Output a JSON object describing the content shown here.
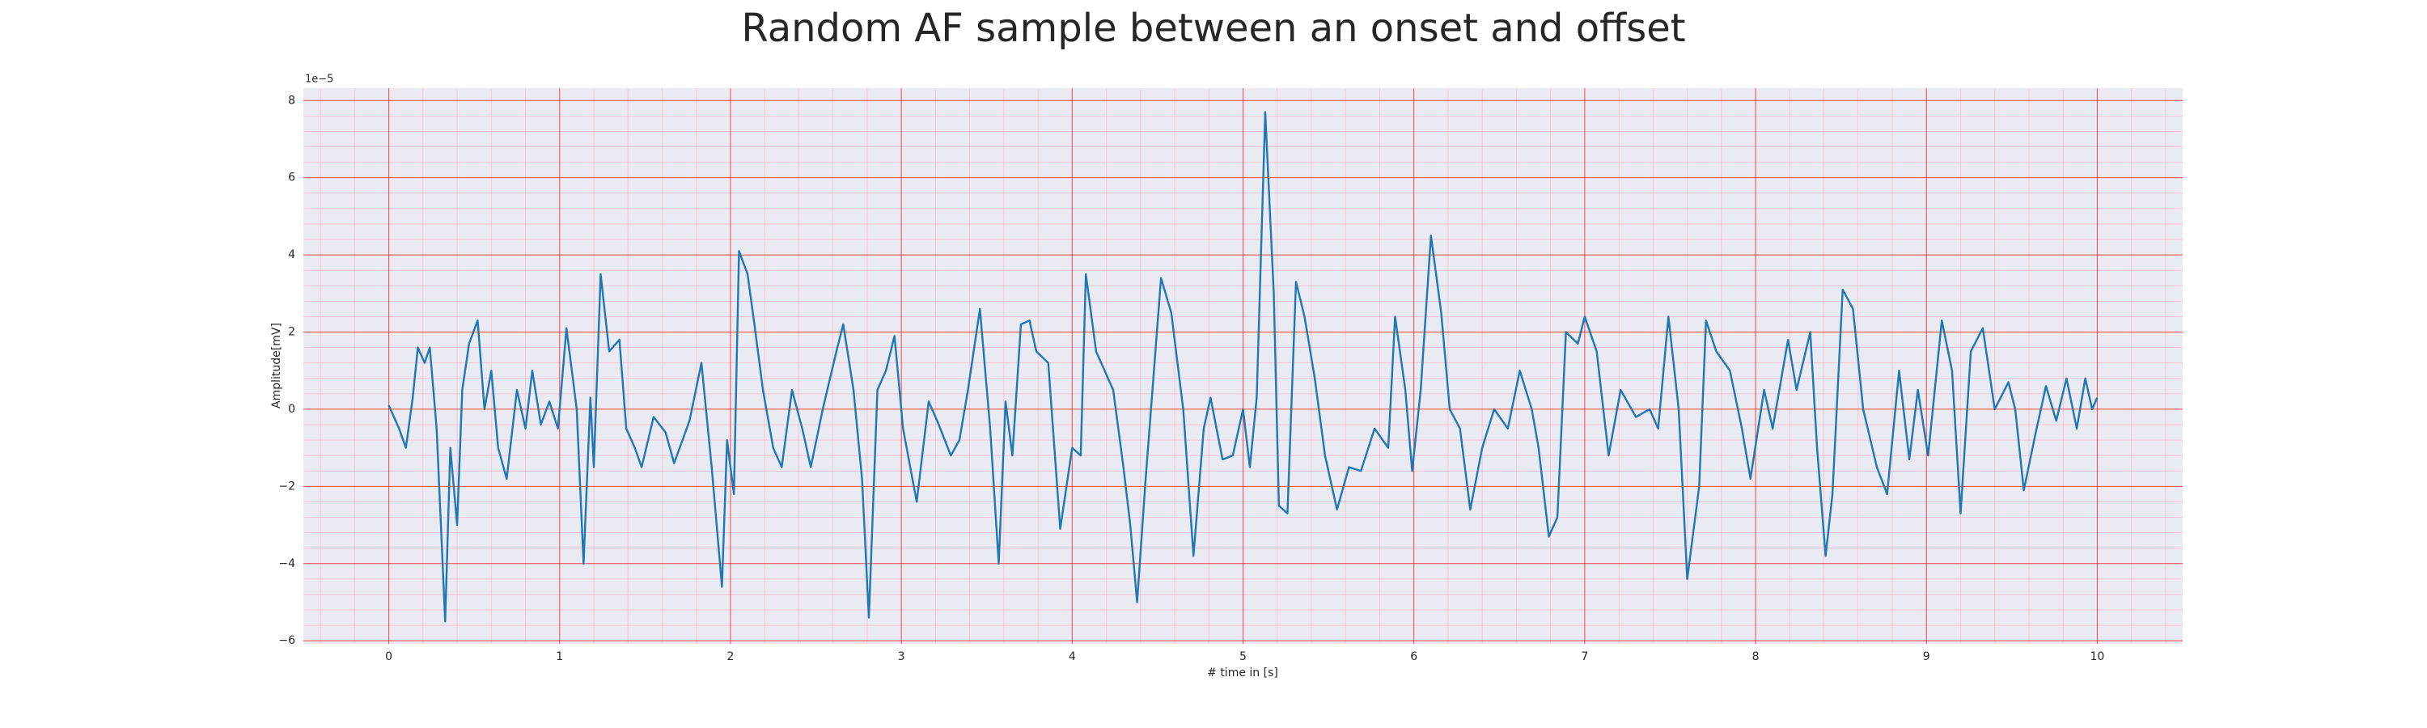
{
  "chart_data": {
    "type": "line",
    "title": "Random AF sample between an onset and offset",
    "xlabel": "# time in [s]",
    "ylabel": "Amplitude[mV]",
    "y_offset_label": "1e−5",
    "xlim": [
      -0.5,
      10.5
    ],
    "ylim": [
      -6.08,
      8.32
    ],
    "xticks": [
      0,
      1,
      2,
      3,
      4,
      5,
      6,
      7,
      8,
      9,
      10
    ],
    "yticks": [
      {
        "value": -6,
        "label": "−6"
      },
      {
        "value": -4,
        "label": "−4"
      },
      {
        "value": -2,
        "label": "−2"
      },
      0,
      2,
      4,
      6,
      8
    ],
    "xminorticks": [
      -0.4,
      -0.2,
      0.2,
      0.4,
      0.6,
      0.8,
      1.2,
      1.4,
      1.6,
      1.8,
      2.2,
      2.4,
      2.6,
      2.8,
      3.2,
      3.4,
      3.6,
      3.8,
      4.2,
      4.4,
      4.6,
      4.8,
      5.2,
      5.4,
      5.6,
      5.8,
      6.2,
      6.4,
      6.6,
      6.8,
      7.2,
      7.4,
      7.6,
      7.8,
      8.2,
      8.4,
      8.6,
      8.8,
      9.2,
      9.4,
      9.6,
      9.8,
      10.2,
      10.4
    ],
    "yminorticks": [
      -5.6,
      -5.2,
      -4.8,
      -4.4,
      -3.6,
      -3.2,
      -2.8,
      -2.4,
      -1.6,
      -1.2,
      -0.8,
      -0.4,
      0.4,
      0.8,
      1.2,
      1.6,
      2.4,
      2.8,
      3.2,
      3.6,
      4.4,
      4.8,
      5.2,
      5.6,
      6.4,
      6.8,
      7.2,
      7.6
    ],
    "grid": true,
    "minor_grid": true,
    "grid_color": "#ff0000",
    "minor_grid_color": "#ffb0c0",
    "background": "#eaeaf2",
    "x": [
      0,
      0.06,
      0.1,
      0.14,
      0.17,
      0.21,
      0.24,
      0.28,
      0.33,
      0.36,
      0.4,
      0.43,
      0.47,
      0.52,
      0.56,
      0.6,
      0.64,
      0.69,
      0.75,
      0.8,
      0.84,
      0.89,
      0.94,
      0.99,
      1.04,
      1.1,
      1.14,
      1.18,
      1.2,
      1.24,
      1.29,
      1.35,
      1.39,
      1.44,
      1.48,
      1.55,
      1.62,
      1.67,
      1.76,
      1.83,
      1.89,
      1.95,
      1.98,
      2.02,
      2.05,
      2.1,
      2.14,
      2.19,
      2.25,
      2.3,
      2.36,
      2.42,
      2.47,
      2.54,
      2.62,
      2.66,
      2.72,
      2.77,
      2.81,
      2.86,
      2.91,
      2.96,
      3.01,
      3.09,
      3.16,
      3.21,
      3.29,
      3.34,
      3.39,
      3.46,
      3.52,
      3.57,
      3.61,
      3.65,
      3.7,
      3.75,
      3.79,
      3.86,
      3.93,
      4,
      4.05,
      4.08,
      4.14,
      4.19,
      4.24,
      4.3,
      4.34,
      4.38,
      4.43,
      4.47,
      4.52,
      4.58,
      4.65,
      4.71,
      4.77,
      4.81,
      4.88,
      4.94,
      5,
      5.04,
      5.08,
      5.13,
      5.18,
      5.21,
      5.26,
      5.31,
      5.36,
      5.42,
      5.48,
      5.55,
      5.62,
      5.69,
      5.77,
      5.85,
      5.89,
      5.95,
      5.99,
      6.04,
      6.1,
      6.16,
      6.21,
      6.27,
      6.33,
      6.4,
      6.47,
      6.55,
      6.62,
      6.69,
      6.73,
      6.79,
      6.84,
      6.89,
      6.96,
      7,
      7.07,
      7.14,
      7.21,
      7.3,
      7.38,
      7.43,
      7.49,
      7.55,
      7.6,
      7.67,
      7.71,
      7.77,
      7.85,
      7.92,
      7.97,
      8.05,
      8.1,
      8.19,
      8.24,
      8.32,
      8.36,
      8.41,
      8.45,
      8.51,
      8.57,
      8.63,
      8.71,
      8.77,
      8.84,
      8.9,
      8.95,
      9.01,
      9.09,
      9.15,
      9.2,
      9.26,
      9.33,
      9.4,
      9.48,
      9.52,
      9.57,
      9.64,
      9.7,
      9.76,
      9.82,
      9.88,
      9.93,
      9.97,
      10
    ],
    "series": [
      {
        "color": "#1f77b4",
        "values": [
          0.1,
          -0.5,
          -1,
          0.3,
          1.6,
          1.2,
          1.6,
          -0.5,
          -5.5,
          -1,
          -3,
          0.5,
          1.7,
          2.3,
          0,
          1,
          -1,
          -1.8,
          0.5,
          -0.5,
          1,
          -0.4,
          0.2,
          -0.5,
          2.1,
          0,
          -4,
          0.3,
          -1.5,
          3.5,
          1.5,
          1.8,
          -0.5,
          -1,
          -1.5,
          -0.2,
          -0.6,
          -1.4,
          -0.3,
          1.2,
          -1.5,
          -4.6,
          -0.8,
          -2.2,
          4.1,
          3.5,
          2.2,
          0.5,
          -1,
          -1.5,
          0.5,
          -0.5,
          -1.5,
          0,
          1.5,
          2.2,
          0.5,
          -1.8,
          -5.4,
          0.5,
          1,
          1.9,
          -0.5,
          -2.4,
          0.2,
          -0.3,
          -1.2,
          -0.8,
          0.5,
          2.6,
          -0.5,
          -4,
          0.2,
          -1.2,
          2.2,
          2.3,
          1.5,
          1.2,
          -3.1,
          -1,
          -1.2,
          3.5,
          1.5,
          1,
          0.5,
          -1.5,
          -3,
          -5,
          -1.8,
          0.5,
          3.4,
          2.5,
          0,
          -3.8,
          -0.5,
          0.3,
          -1.3,
          -1.2,
          0,
          -1.5,
          0.3,
          7.7,
          3,
          -2.5,
          -2.7,
          3.3,
          2.4,
          0.8,
          -1.2,
          -2.6,
          -1.5,
          -1.6,
          -0.5,
          -1,
          2.4,
          0.5,
          -1.6,
          0.5,
          4.5,
          2.5,
          0,
          -0.5,
          -2.6,
          -1,
          0,
          -0.5,
          1,
          0,
          -1,
          -3.3,
          -2.8,
          2,
          1.7,
          2.4,
          1.5,
          -1.2,
          0.5,
          -0.2,
          0,
          -0.5,
          2.4,
          0,
          -4.4,
          -2,
          2.3,
          1.5,
          1,
          -0.5,
          -1.8,
          0.5,
          -0.5,
          1.8,
          0.5,
          2,
          -1,
          -3.8,
          -2.2,
          3.1,
          2.6,
          0,
          -1.5,
          -2.2,
          1,
          -1.3,
          0.5,
          -1.2,
          2.3,
          1,
          -2.7,
          1.5,
          2.1,
          0,
          0.7,
          0,
          -2.1,
          -0.6,
          0.6,
          -0.3,
          0.8,
          -0.5,
          0.8,
          0,
          0.3
        ]
      }
    ]
  }
}
